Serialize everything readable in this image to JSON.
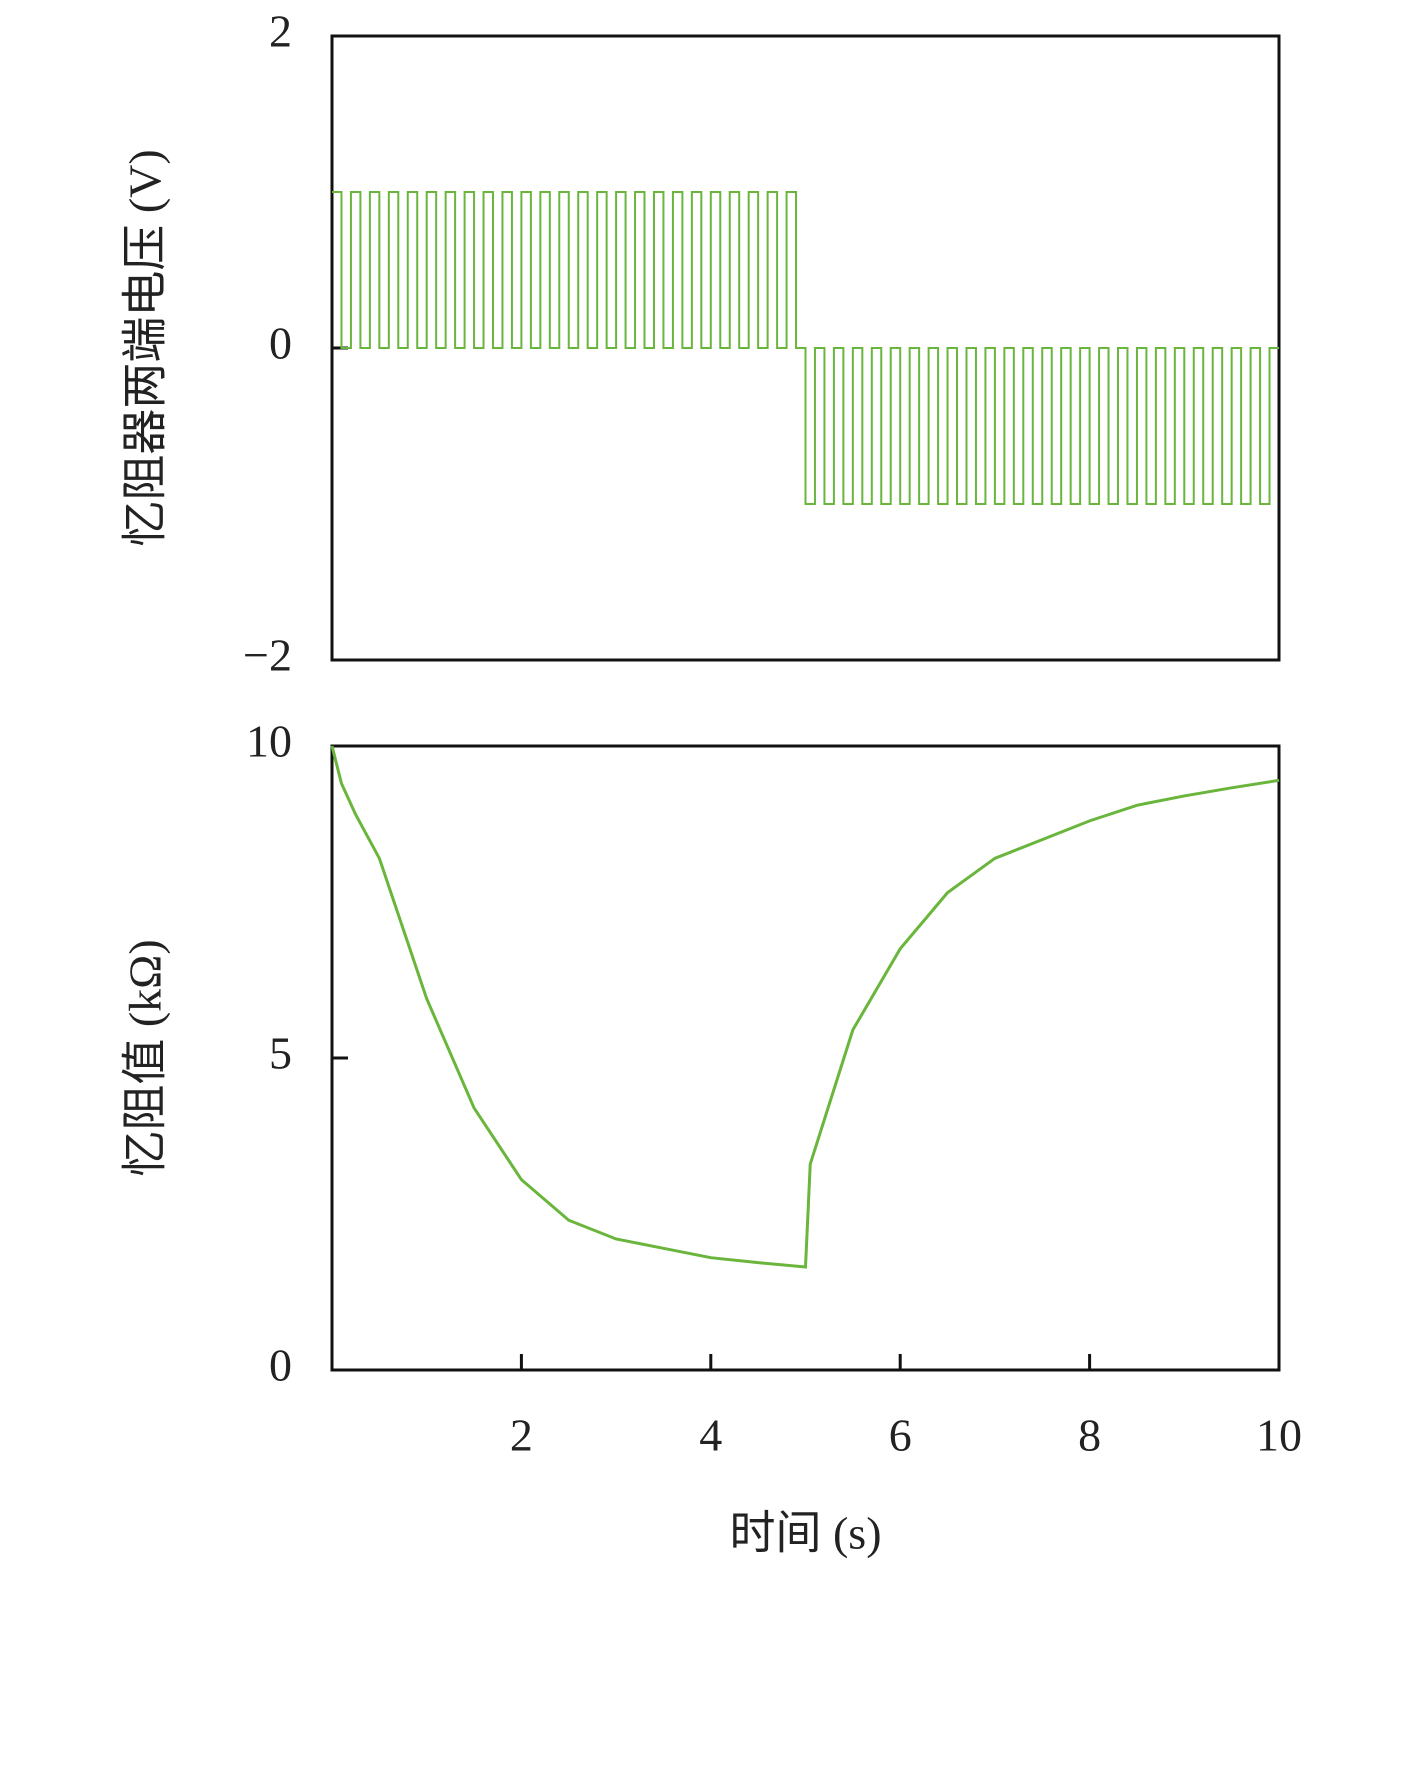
{
  "chart_data": [
    {
      "type": "line",
      "step": true,
      "ylabel": "忆阻器两端电压 (V)",
      "xlim": [
        0,
        10
      ],
      "ylim": [
        -2,
        2
      ],
      "yticks": [
        {
          "value": -2,
          "label": "−2"
        },
        0,
        2
      ],
      "series": [
        {
          "color": "#6ab53b",
          "x": [
            0,
            0.1,
            0.2,
            0.3,
            0.4,
            0.5,
            0.6,
            0.7,
            0.8,
            0.9,
            1,
            1.1,
            1.2,
            1.3,
            1.4,
            1.5,
            1.6,
            1.7,
            1.8,
            1.9,
            2,
            2.1,
            2.2,
            2.3,
            2.4,
            2.5,
            2.6,
            2.7,
            2.8,
            2.9,
            3,
            3.1,
            3.2,
            3.3,
            3.4,
            3.5,
            3.6,
            3.7,
            3.8,
            3.9,
            4,
            4.1,
            4.2,
            4.3,
            4.4,
            4.5,
            4.6,
            4.7,
            4.8,
            4.9,
            5,
            5.1,
            5.2,
            5.3,
            5.4,
            5.5,
            5.6,
            5.7,
            5.8,
            5.9,
            6,
            6.1,
            6.2,
            6.3,
            6.4,
            6.5,
            6.6,
            6.7,
            6.8,
            6.9,
            7,
            7.1,
            7.2,
            7.3,
            7.4,
            7.5,
            7.6,
            7.7,
            7.8,
            7.9,
            8,
            8.1,
            8.2,
            8.3,
            8.4,
            8.5,
            8.6,
            8.7,
            8.8,
            8.9,
            9,
            9.1,
            9.2,
            9.3,
            9.4,
            9.5,
            9.6,
            9.7,
            9.8,
            9.9,
            10
          ],
          "values": [
            1,
            0,
            1,
            0,
            1,
            0,
            1,
            0,
            1,
            0,
            1,
            0,
            1,
            0,
            1,
            0,
            1,
            0,
            1,
            0,
            1,
            0,
            1,
            0,
            1,
            0,
            1,
            0,
            1,
            0,
            1,
            0,
            1,
            0,
            1,
            0,
            1,
            0,
            1,
            0,
            1,
            0,
            1,
            0,
            1,
            0,
            1,
            0,
            1,
            0,
            -1,
            0,
            -1,
            0,
            -1,
            0,
            -1,
            0,
            -1,
            0,
            -1,
            0,
            -1,
            0,
            -1,
            0,
            -1,
            0,
            -1,
            0,
            -1,
            0,
            -1,
            0,
            -1,
            0,
            -1,
            0,
            -1,
            0,
            -1,
            0,
            -1,
            0,
            -1,
            0,
            -1,
            0,
            -1,
            0,
            -1,
            0,
            -1,
            0,
            -1,
            0,
            -1,
            0,
            -1,
            0,
            0
          ]
        }
      ]
    },
    {
      "type": "line",
      "step": false,
      "ylabel": "忆阻值 (kΩ)",
      "xlabel": "时间 (s)",
      "xlim": [
        0,
        10
      ],
      "ylim": [
        0,
        10
      ],
      "xticks": [
        2,
        4,
        6,
        8,
        10
      ],
      "yticks": [
        0,
        5,
        10
      ],
      "series": [
        {
          "color": "#6ab53b",
          "x": [
            0,
            0.1,
            0.25,
            0.5,
            1,
            1.5,
            2,
            2.5,
            3,
            3.5,
            4,
            4.5,
            5,
            5.05,
            5.5,
            6,
            6.5,
            7,
            7.5,
            8,
            8.5,
            9,
            9.5,
            10
          ],
          "values": [
            10,
            9.4,
            8.9,
            8.2,
            5.95,
            4.2,
            3.05,
            2.4,
            2.1,
            1.95,
            1.8,
            1.72,
            1.65,
            3.3,
            5.45,
            6.75,
            7.65,
            8.2,
            8.5,
            8.8,
            9.05,
            9.2,
            9.33,
            9.45
          ]
        }
      ]
    }
  ]
}
